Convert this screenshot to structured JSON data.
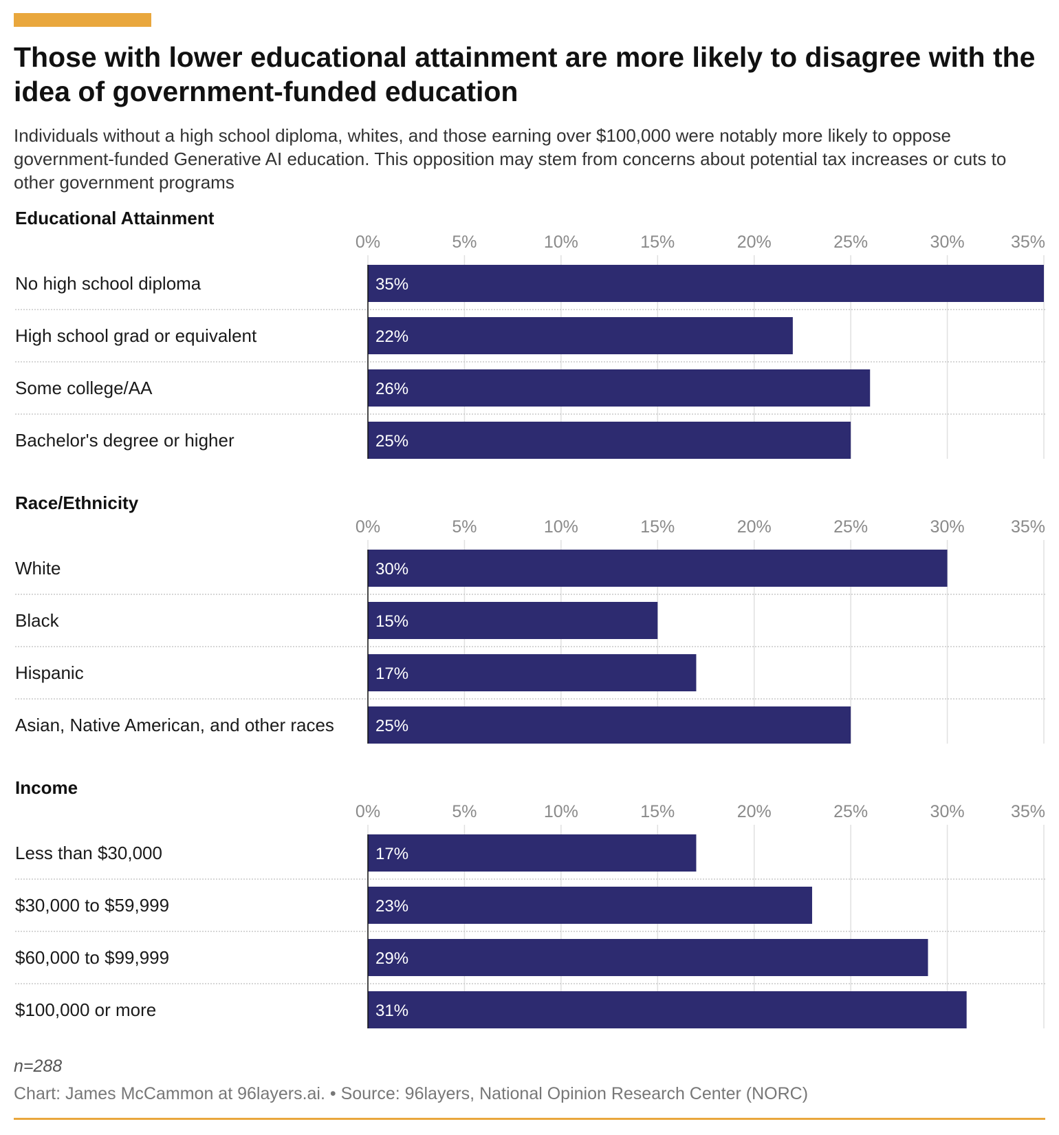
{
  "title": "Those with lower educational attainment are more likely to disagree with the idea of government-funded education",
  "subtitle": "Individuals without a high school diploma, whites, and those earning over $100,000 were notably more likely to oppose government-funded Generative AI education. This opposition may stem from concerns about potential tax increases or cuts to other government programs",
  "note": "n=288",
  "credit": "Chart: James McCammon at 96layers.ai. • Source: 96layers, National Opinion Research Center (NORC)",
  "colors": {
    "bar": "#2d2b70",
    "accent": "#e9a73d",
    "grid": "#e0e0e0",
    "separator": "#c8c8c8"
  },
  "chart_data": [
    {
      "type": "bar",
      "title": "Educational Attainment",
      "categories": [
        "No high school diploma",
        "High school grad or equivalent",
        "Some college/AA",
        "Bachelor's degree or higher"
      ],
      "values": [
        35,
        22,
        26,
        25
      ],
      "value_labels": [
        "35%",
        "22%",
        "26%",
        "25%"
      ],
      "xlim": [
        0,
        35
      ],
      "ticks": [
        0,
        5,
        10,
        15,
        20,
        25,
        30,
        35
      ],
      "tick_labels": [
        "0%",
        "5%",
        "10%",
        "15%",
        "20%",
        "25%",
        "30%",
        "35%"
      ],
      "orientation": "horizontal",
      "grid": true
    },
    {
      "type": "bar",
      "title": "Race/Ethnicity",
      "categories": [
        "White",
        "Black",
        "Hispanic",
        "Asian, Native American, and other races"
      ],
      "values": [
        30,
        15,
        17,
        25
      ],
      "value_labels": [
        "30%",
        "15%",
        "17%",
        "25%"
      ],
      "xlim": [
        0,
        35
      ],
      "ticks": [
        0,
        5,
        10,
        15,
        20,
        25,
        30,
        35
      ],
      "tick_labels": [
        "0%",
        "5%",
        "10%",
        "15%",
        "20%",
        "25%",
        "30%",
        "35%"
      ],
      "orientation": "horizontal",
      "grid": true
    },
    {
      "type": "bar",
      "title": "Income",
      "categories": [
        "Less than $30,000",
        "$30,000 to $59,999",
        "$60,000 to $99,999",
        "$100,000 or more"
      ],
      "values": [
        17,
        23,
        29,
        31
      ],
      "value_labels": [
        "17%",
        "23%",
        "29%",
        "31%"
      ],
      "xlim": [
        0,
        35
      ],
      "ticks": [
        0,
        5,
        10,
        15,
        20,
        25,
        30,
        35
      ],
      "tick_labels": [
        "0%",
        "5%",
        "10%",
        "15%",
        "20%",
        "25%",
        "30%",
        "35%"
      ],
      "orientation": "horizontal",
      "grid": true
    }
  ]
}
